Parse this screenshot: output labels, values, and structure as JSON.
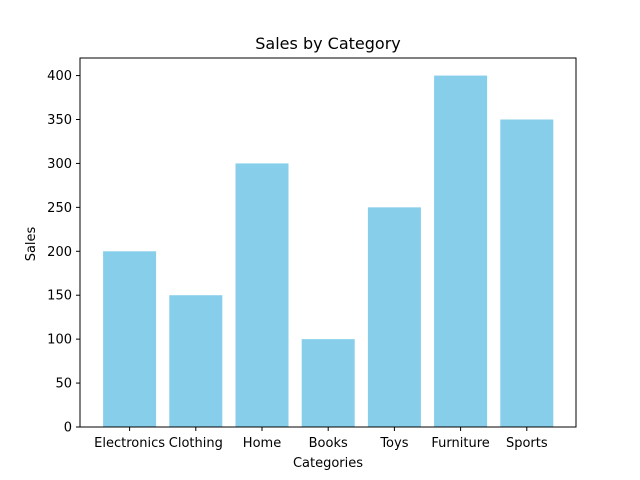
{
  "chart_data": {
    "type": "bar",
    "title": "Sales by Category",
    "xlabel": "Categories",
    "ylabel": "Sales",
    "categories": [
      "Electronics",
      "Clothing",
      "Home",
      "Books",
      "Toys",
      "Furniture",
      "Sports"
    ],
    "values": [
      200,
      150,
      300,
      100,
      250,
      400,
      350
    ],
    "ylim": [
      0,
      420
    ],
    "yticks": [
      0,
      50,
      100,
      150,
      200,
      250,
      300,
      350,
      400
    ],
    "bar_color": "#87ceeb",
    "grid": false,
    "legend": "none"
  }
}
